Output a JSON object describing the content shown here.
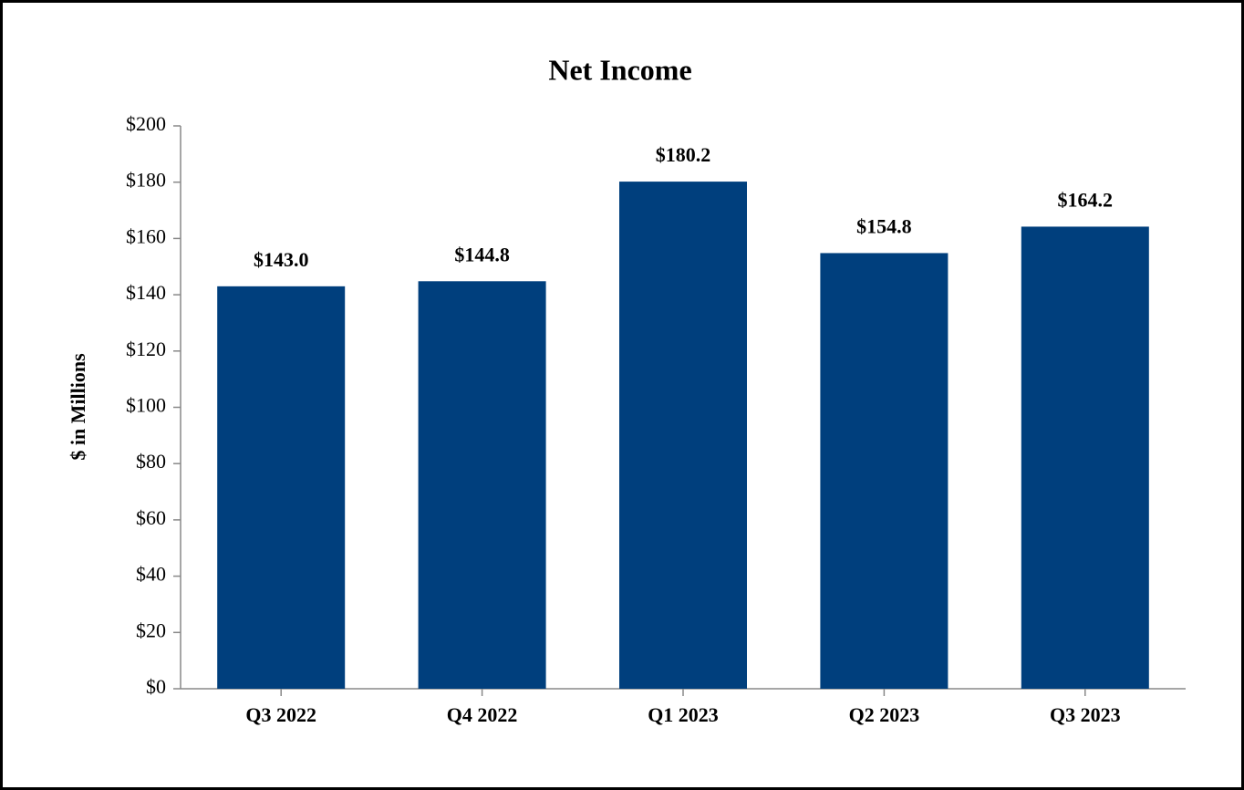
{
  "chart_data": {
    "type": "bar",
    "title": "Net Income",
    "y_label": "$ in Millions",
    "categories": [
      "Q3 2022",
      "Q4 2022",
      "Q1 2023",
      "Q2 2023",
      "Q3 2023"
    ],
    "values": [
      143.0,
      144.8,
      180.2,
      154.8,
      164.2
    ],
    "value_labels": [
      "$143.0",
      "$144.8",
      "$180.2",
      "$154.8",
      "$164.2"
    ],
    "color": "#003f7d",
    "ylim": [
      0,
      200
    ],
    "yticks": [
      {
        "value": 0,
        "label": "$0"
      },
      {
        "value": 20,
        "label": "$20"
      },
      {
        "value": 40,
        "label": "$40"
      },
      {
        "value": 60,
        "label": "$60"
      },
      {
        "value": 80,
        "label": "$80"
      },
      {
        "value": 100,
        "label": "$100"
      },
      {
        "value": 120,
        "label": "$120"
      },
      {
        "value": 140,
        "label": "$140"
      },
      {
        "value": 160,
        "label": "$160"
      },
      {
        "value": 180,
        "label": "$180"
      },
      {
        "value": 200,
        "label": "$200"
      }
    ],
    "grid": false
  }
}
